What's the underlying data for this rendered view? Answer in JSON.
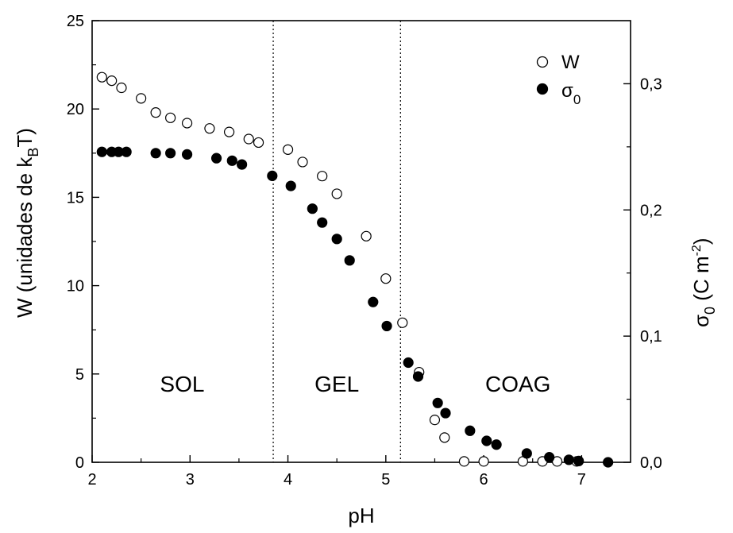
{
  "chart_data": {
    "type": "scatter",
    "xlabel": "pH",
    "ylabel_left": "W (unidades de k",
    "ylabel_left_sub": "B",
    "ylabel_left_end": "T)",
    "ylabel_right": "σ",
    "ylabel_right_sub": "0",
    "ylabel_right_unit": " (C m",
    "ylabel_right_sup": "-2",
    "ylabel_right_end": ")",
    "xlim": [
      2,
      7.5
    ],
    "ylim_left": [
      0,
      25
    ],
    "ylim_right": [
      0,
      0.35
    ],
    "x_ticks": [
      "2",
      "3",
      "4",
      "5",
      "6",
      "7"
    ],
    "y_left_ticks": [
      "0",
      "5",
      "10",
      "15",
      "20",
      "25"
    ],
    "y_right_ticks": [
      "0,0",
      "0,1",
      "0,2",
      "0,3"
    ],
    "legend_position": "top-right",
    "series": [
      {
        "name": "W",
        "axis": "left",
        "marker": "open-circle",
        "x": [
          2.1,
          2.2,
          2.3,
          2.5,
          2.65,
          2.8,
          2.97,
          3.2,
          3.4,
          3.6,
          3.7,
          4.0,
          4.15,
          4.35,
          4.5,
          4.8,
          5.0,
          5.17,
          5.34,
          5.5,
          5.6,
          5.8,
          6.0,
          6.4,
          6.6,
          6.75,
          6.95
        ],
        "y": [
          21.8,
          21.6,
          21.2,
          20.6,
          19.8,
          19.5,
          19.2,
          18.9,
          18.7,
          18.3,
          18.1,
          17.7,
          17.0,
          16.2,
          15.2,
          12.8,
          10.4,
          7.9,
          5.1,
          2.4,
          1.4,
          0.05,
          0.05,
          0.05,
          0.05,
          0.05,
          0.05
        ]
      },
      {
        "name": "σ",
        "name_sub": "0",
        "axis": "right",
        "marker": "filled-circle",
        "x": [
          2.1,
          2.2,
          2.27,
          2.35,
          2.65,
          2.8,
          2.97,
          3.27,
          3.43,
          3.53,
          3.84,
          4.03,
          4.25,
          4.35,
          4.5,
          4.63,
          4.87,
          5.01,
          5.23,
          5.33,
          5.53,
          5.61,
          5.86,
          6.03,
          6.13,
          6.44,
          6.67,
          6.87,
          6.97,
          7.27
        ],
        "y": [
          0.246,
          0.246,
          0.246,
          0.246,
          0.245,
          0.245,
          0.244,
          0.241,
          0.239,
          0.236,
          0.227,
          0.219,
          0.201,
          0.19,
          0.177,
          0.16,
          0.127,
          0.108,
          0.079,
          0.068,
          0.047,
          0.039,
          0.025,
          0.017,
          0.014,
          0.007,
          0.004,
          0.002,
          0.001,
          0.0
        ]
      }
    ],
    "vertical_lines_x": [
      3.85,
      5.15
    ],
    "annotations": [
      {
        "text": "SOL",
        "x": 2.92,
        "y": 4.0
      },
      {
        "text": "GEL",
        "x": 4.5,
        "y": 4.0
      },
      {
        "text": "COAG",
        "x": 6.35,
        "y": 4.0
      }
    ]
  }
}
